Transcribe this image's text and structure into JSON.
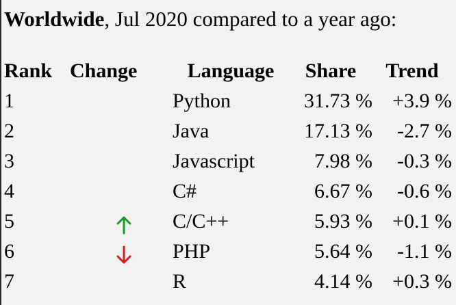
{
  "heading": {
    "strong": "Worldwide",
    "rest": ", Jul 2020 compared to a year ago:"
  },
  "table": {
    "headers": {
      "rank": "Rank",
      "change": "Change",
      "language": "Language",
      "share": "Share",
      "trend": "Trend"
    },
    "rows": [
      {
        "rank": "1",
        "change": "",
        "language": "Python",
        "share": "31.73 %",
        "trend": "+3.9 %"
      },
      {
        "rank": "2",
        "change": "",
        "language": "Java",
        "share": "17.13 %",
        "trend": "-2.7 %"
      },
      {
        "rank": "3",
        "change": "",
        "language": "Javascript",
        "share": "7.98 %",
        "trend": "-0.3 %"
      },
      {
        "rank": "4",
        "change": "",
        "language": "C#",
        "share": "6.67 %",
        "trend": "-0.6 %"
      },
      {
        "rank": "5",
        "change": "up-arrow-icon",
        "language": "C/C++",
        "share": "5.93 %",
        "trend": "+0.1 %"
      },
      {
        "rank": "6",
        "change": "down-arrow-icon",
        "language": "PHP",
        "share": "5.64 %",
        "trend": "-1.1 %"
      },
      {
        "rank": "7",
        "change": "",
        "language": "R",
        "share": "4.14 %",
        "trend": "+0.3 %"
      }
    ]
  },
  "colors": {
    "up": "#1a9a2a",
    "down": "#d42020",
    "background": "#f2f2f2"
  }
}
